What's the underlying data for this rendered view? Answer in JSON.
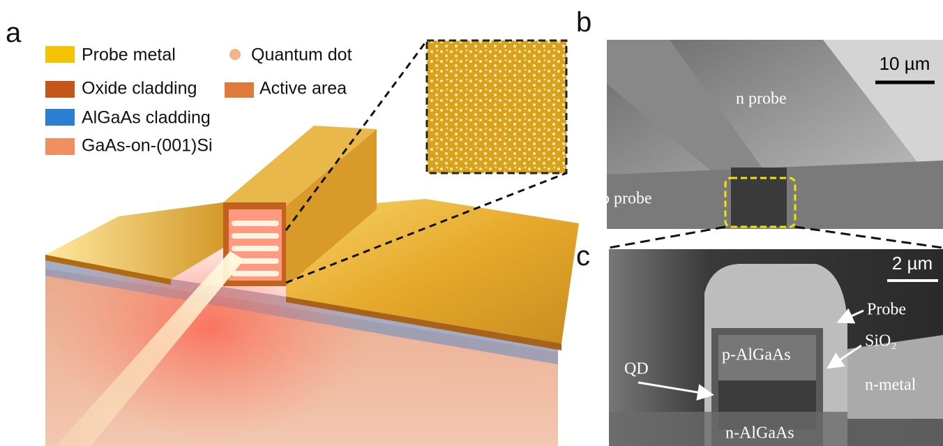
{
  "panel_labels": {
    "a": "a",
    "b": "b",
    "c": "c"
  },
  "legend": [
    "Probe metal",
    "Quantum dot",
    "Oxide cladding",
    "Active area",
    "AlGaAs cladding",
    "GaAs-on-(001)Si"
  ],
  "panel_b": {
    "scale_bar": "10 µm",
    "labels": [
      "n probe",
      "p probe"
    ]
  },
  "panel_c": {
    "scale_bar": "2 µm",
    "labels": [
      "Probe",
      "SiO₂",
      "p-AlGaAs",
      "QD",
      "n-metal",
      "n-AlGaAs"
    ]
  }
}
